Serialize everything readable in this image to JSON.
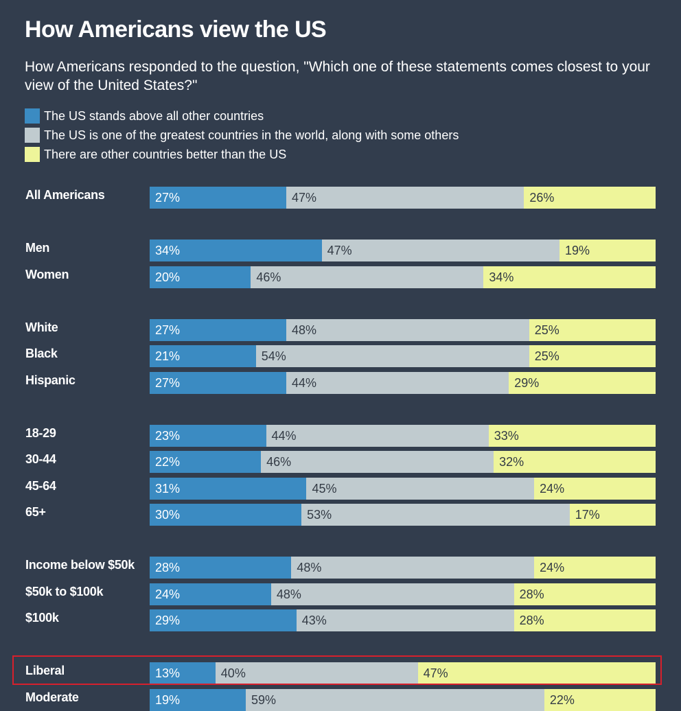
{
  "colors": {
    "background": "#323d4d",
    "above_all": "#3b8bc2",
    "one_of_greatest": "#c0cbcf",
    "others_better": "#eef59a",
    "highlight": "#d7202c"
  },
  "chart_data": {
    "type": "bar",
    "orientation": "horizontal",
    "stacked": true,
    "normalized": true,
    "title": "How Americans view the US",
    "subtitle": "How Americans responded to the question, \"Which one of these statements comes closest to your view of the United States?\"",
    "legend": [
      {
        "name": "The US stands above all other countries",
        "color": "#3b8bc2"
      },
      {
        "name": "The US is one of the greatest countries in the world, along with some others",
        "color": "#c0cbcf"
      },
      {
        "name": "There are other countries better than the US",
        "color": "#eef59a"
      }
    ],
    "legend_position": "top",
    "grid": false,
    "groups": [
      {
        "rows": [
          {
            "label": "All Americans",
            "values": [
              27,
              47,
              26
            ]
          }
        ]
      },
      {
        "rows": [
          {
            "label": "Men",
            "values": [
              34,
              47,
              19
            ]
          },
          {
            "label": "Women",
            "values": [
              20,
              46,
              34
            ]
          }
        ]
      },
      {
        "rows": [
          {
            "label": "White",
            "values": [
              27,
              48,
              25
            ]
          },
          {
            "label": "Black",
            "values": [
              21,
              54,
              25
            ]
          },
          {
            "label": "Hispanic",
            "values": [
              27,
              44,
              29
            ]
          }
        ]
      },
      {
        "rows": [
          {
            "label": "18-29",
            "values": [
              23,
              44,
              33
            ]
          },
          {
            "label": "30-44",
            "values": [
              22,
              46,
              32
            ]
          },
          {
            "label": "45-64",
            "values": [
              31,
              45,
              24
            ]
          },
          {
            "label": "65+",
            "values": [
              30,
              53,
              17
            ]
          }
        ]
      },
      {
        "rows": [
          {
            "label": "Income below $50k",
            "values": [
              28,
              48,
              24
            ]
          },
          {
            "label": "$50k to $100k",
            "values": [
              24,
              48,
              28
            ]
          },
          {
            "label": "$100k",
            "values": [
              29,
              43,
              28
            ]
          }
        ]
      },
      {
        "rows": [
          {
            "label": "Liberal",
            "values": [
              13,
              40,
              47
            ],
            "highlighted": true
          },
          {
            "label": "Moderate",
            "values": [
              19,
              59,
              22
            ]
          }
        ]
      }
    ]
  }
}
